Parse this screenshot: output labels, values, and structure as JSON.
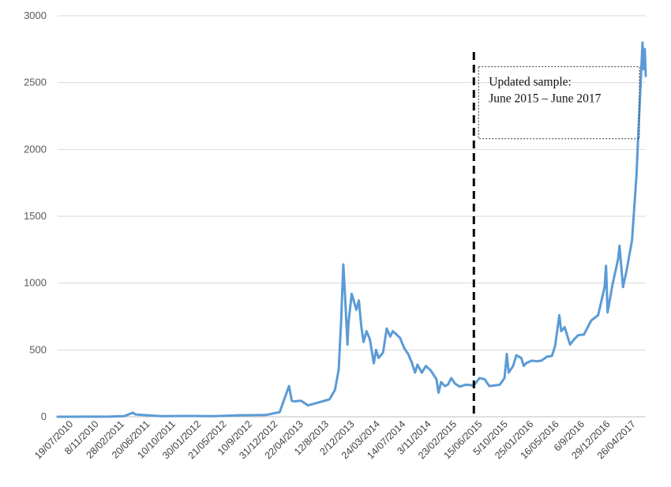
{
  "chart_data": {
    "type": "line",
    "title": "",
    "xlabel": "",
    "ylabel": "",
    "ylim": [
      0,
      3000
    ],
    "y_ticks": [
      0,
      500,
      1000,
      1500,
      2000,
      2500,
      3000
    ],
    "grid": "horizontal",
    "x_tick_labels": [
      "19/07/2010",
      "8/11/2010",
      "28/02/2011",
      "20/06/2011",
      "10/10/2011",
      "30/01/2012",
      "21/05/2012",
      "10/9/2012",
      "31/12/2012",
      "22/04/2013",
      "12/8/2013",
      "2/12/2013",
      "24/03/2014",
      "14/07/2014",
      "3/11/2014",
      "23/02/2015",
      "15/06/2015",
      "5/10/2015",
      "25/01/2016",
      "16/05/2016",
      "6/9/2016",
      "29/12/2016",
      "26/04/2017"
    ],
    "series": [
      {
        "color": "#5b9bd5",
        "points": [
          [
            "2010-07-19",
            0.1
          ],
          [
            "2010-11-08",
            0.3
          ],
          [
            "2011-02-28",
            1
          ],
          [
            "2011-05-01",
            4
          ],
          [
            "2011-06-08",
            30
          ],
          [
            "2011-06-20",
            17
          ],
          [
            "2011-08-01",
            12
          ],
          [
            "2011-10-10",
            4
          ],
          [
            "2012-01-30",
            6
          ],
          [
            "2012-05-21",
            5
          ],
          [
            "2012-09-10",
            11
          ],
          [
            "2012-12-31",
            13
          ],
          [
            "2013-03-01",
            35
          ],
          [
            "2013-04-10",
            230
          ],
          [
            "2013-04-22",
            120
          ],
          [
            "2013-05-01",
            115
          ],
          [
            "2013-06-01",
            120
          ],
          [
            "2013-07-01",
            85
          ],
          [
            "2013-08-12",
            105
          ],
          [
            "2013-10-01",
            130
          ],
          [
            "2013-10-25",
            200
          ],
          [
            "2013-11-10",
            350
          ],
          [
            "2013-11-20",
            700
          ],
          [
            "2013-11-30",
            1140
          ],
          [
            "2013-12-06",
            950
          ],
          [
            "2013-12-18",
            540
          ],
          [
            "2013-12-22",
            700
          ],
          [
            "2014-01-05",
            920
          ],
          [
            "2014-01-25",
            800
          ],
          [
            "2014-02-05",
            870
          ],
          [
            "2014-02-15",
            680
          ],
          [
            "2014-02-25",
            560
          ],
          [
            "2014-03-10",
            640
          ],
          [
            "2014-03-24",
            580
          ],
          [
            "2014-04-10",
            400
          ],
          [
            "2014-04-20",
            500
          ],
          [
            "2014-05-01",
            440
          ],
          [
            "2014-05-20",
            480
          ],
          [
            "2014-06-05",
            660
          ],
          [
            "2014-06-20",
            600
          ],
          [
            "2014-07-01",
            640
          ],
          [
            "2014-07-14",
            620
          ],
          [
            "2014-08-01",
            590
          ],
          [
            "2014-08-20",
            510
          ],
          [
            "2014-09-05",
            470
          ],
          [
            "2014-09-20",
            410
          ],
          [
            "2014-10-05",
            330
          ],
          [
            "2014-10-15",
            390
          ],
          [
            "2014-11-03",
            330
          ],
          [
            "2014-11-20",
            380
          ],
          [
            "2014-12-10",
            350
          ],
          [
            "2015-01-05",
            280
          ],
          [
            "2015-01-14",
            180
          ],
          [
            "2015-01-25",
            260
          ],
          [
            "2015-02-10",
            230
          ],
          [
            "2015-02-23",
            240
          ],
          [
            "2015-03-10",
            290
          ],
          [
            "2015-03-25",
            250
          ],
          [
            "2015-04-15",
            225
          ],
          [
            "2015-05-10",
            240
          ],
          [
            "2015-06-15",
            235
          ],
          [
            "2015-07-10",
            290
          ],
          [
            "2015-08-01",
            280
          ],
          [
            "2015-08-20",
            230
          ],
          [
            "2015-09-15",
            235
          ],
          [
            "2015-10-05",
            240
          ],
          [
            "2015-10-25",
            290
          ],
          [
            "2015-11-04",
            470
          ],
          [
            "2015-11-12",
            330
          ],
          [
            "2015-12-01",
            380
          ],
          [
            "2015-12-15",
            460
          ],
          [
            "2016-01-05",
            440
          ],
          [
            "2016-01-16",
            380
          ],
          [
            "2016-01-25",
            400
          ],
          [
            "2016-02-20",
            420
          ],
          [
            "2016-03-10",
            415
          ],
          [
            "2016-04-01",
            420
          ],
          [
            "2016-04-25",
            450
          ],
          [
            "2016-05-16",
            455
          ],
          [
            "2016-05-30",
            530
          ],
          [
            "2016-06-17",
            760
          ],
          [
            "2016-06-25",
            640
          ],
          [
            "2016-07-10",
            670
          ],
          [
            "2016-08-02",
            540
          ],
          [
            "2016-08-20",
            580
          ],
          [
            "2016-09-06",
            610
          ],
          [
            "2016-10-01",
            615
          ],
          [
            "2016-11-01",
            720
          ],
          [
            "2016-12-01",
            760
          ],
          [
            "2016-12-29",
            970
          ],
          [
            "2017-01-04",
            1130
          ],
          [
            "2017-01-11",
            780
          ],
          [
            "2017-02-01",
            990
          ],
          [
            "2017-02-25",
            1180
          ],
          [
            "2017-03-03",
            1280
          ],
          [
            "2017-03-18",
            970
          ],
          [
            "2017-04-01",
            1080
          ],
          [
            "2017-04-26",
            1320
          ],
          [
            "2017-05-05",
            1550
          ],
          [
            "2017-05-15",
            1800
          ],
          [
            "2017-05-25",
            2200
          ],
          [
            "2017-06-01",
            2450
          ],
          [
            "2017-06-10",
            2800
          ],
          [
            "2017-06-15",
            2600
          ],
          [
            "2017-06-20",
            2750
          ],
          [
            "2017-06-24",
            2550
          ]
        ]
      }
    ],
    "markers": [
      {
        "type": "vertical-dashed-line",
        "x": "2015-06-15",
        "color": "#000000"
      }
    ],
    "annotation": {
      "lines": [
        "Updated sample:",
        "June 2015 – June 2017"
      ],
      "x_range": [
        "2015-06-15",
        "2017-06-24"
      ],
      "y_range": [
        2080,
        2620
      ]
    }
  }
}
